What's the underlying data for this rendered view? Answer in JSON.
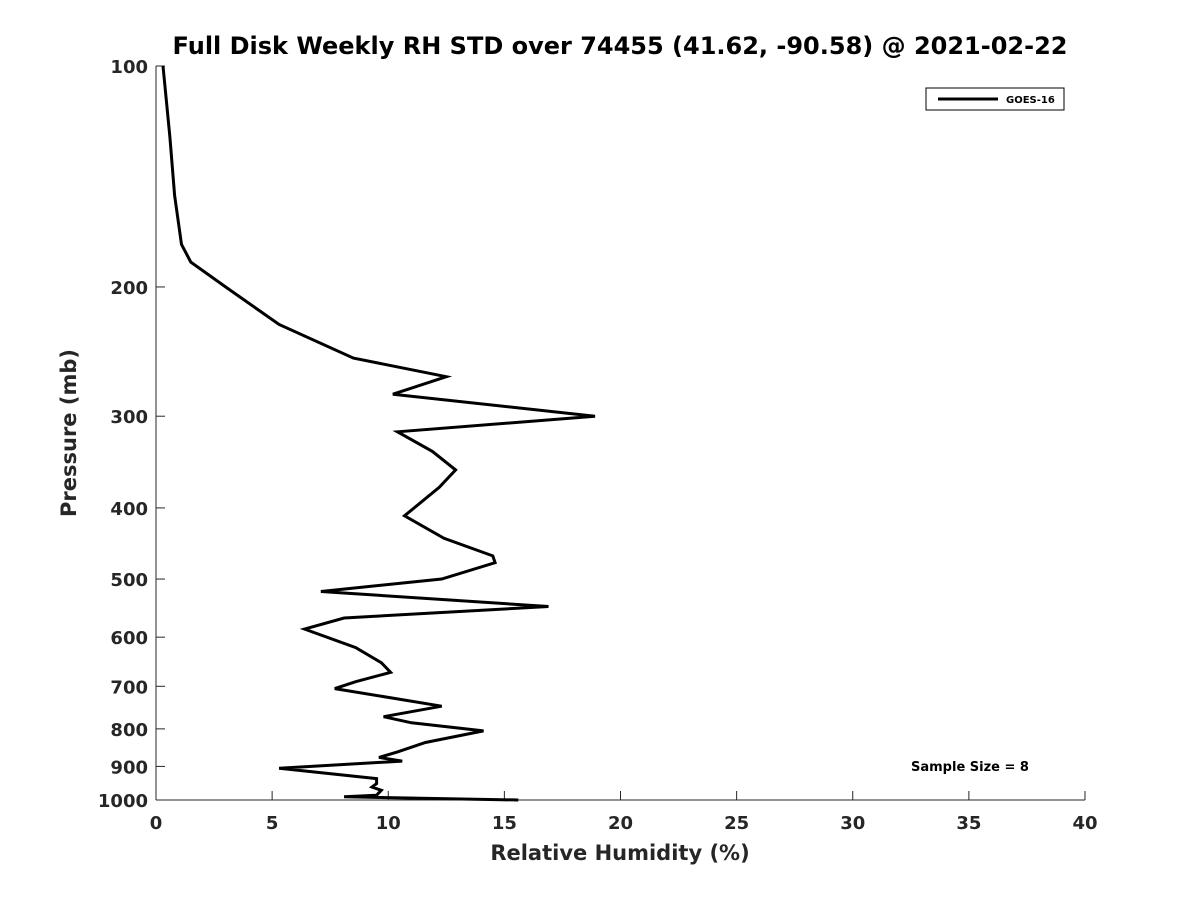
{
  "chart_data": {
    "type": "line",
    "title": "Full Disk Weekly RH STD over 74455 (41.62, -90.58) @ 2021-02-22",
    "xlabel": "Relative Humidity (%)",
    "ylabel": "Pressure (mb)",
    "xlim": [
      0,
      40
    ],
    "ylim": [
      100,
      1000
    ],
    "y_scale": "log",
    "y_reversed": true,
    "x_ticks": [
      0,
      5,
      10,
      15,
      20,
      25,
      30,
      35,
      40
    ],
    "x_tick_labels": [
      "0",
      "5",
      "10",
      "15",
      "20",
      "25",
      "30",
      "35",
      "40"
    ],
    "y_ticks": [
      100,
      200,
      300,
      400,
      500,
      600,
      700,
      800,
      900,
      1000
    ],
    "y_tick_labels": [
      "100",
      "200",
      "300",
      "400",
      "500",
      "600",
      "700",
      "800",
      "900",
      "1000"
    ],
    "grid": false,
    "legend_position": "top-right",
    "series": [
      {
        "name": "GOES-16",
        "color": "#000000",
        "points": [
          [
            0.3,
            100
          ],
          [
            0.6,
            125
          ],
          [
            0.8,
            150
          ],
          [
            1.1,
            175
          ],
          [
            1.5,
            185
          ],
          [
            3.0,
            200
          ],
          [
            5.3,
            225
          ],
          [
            8.5,
            250
          ],
          [
            12.5,
            265
          ],
          [
            10.2,
            280
          ],
          [
            18.9,
            300
          ],
          [
            10.4,
            315
          ],
          [
            11.9,
            335
          ],
          [
            12.9,
            355
          ],
          [
            12.2,
            375
          ],
          [
            10.7,
            410
          ],
          [
            12.4,
            440
          ],
          [
            14.5,
            465
          ],
          [
            14.6,
            475
          ],
          [
            12.3,
            500
          ],
          [
            7.1,
            520
          ],
          [
            16.9,
            545
          ],
          [
            8.1,
            565
          ],
          [
            6.4,
            585
          ],
          [
            8.6,
            620
          ],
          [
            9.7,
            650
          ],
          [
            10.1,
            670
          ],
          [
            8.6,
            690
          ],
          [
            7.7,
            705
          ],
          [
            12.3,
            745
          ],
          [
            9.8,
            770
          ],
          [
            11.0,
            785
          ],
          [
            14.1,
            805
          ],
          [
            11.6,
            835
          ],
          [
            10.4,
            860
          ],
          [
            9.6,
            875
          ],
          [
            10.6,
            885
          ],
          [
            5.3,
            905
          ],
          [
            9.5,
            935
          ],
          [
            9.5,
            950
          ],
          [
            9.3,
            960
          ],
          [
            9.7,
            970
          ],
          [
            9.5,
            985
          ],
          [
            8.1,
            990
          ],
          [
            15.6,
            1000
          ]
        ]
      }
    ],
    "annotations": [
      "Sample Size = 8"
    ]
  }
}
